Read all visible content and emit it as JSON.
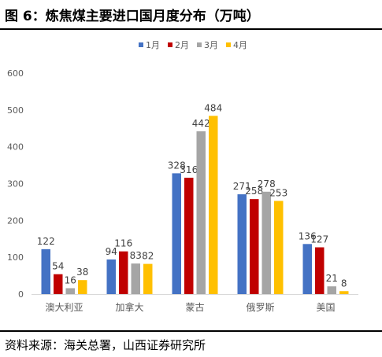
{
  "figure": {
    "title": "图 6：炼焦煤主要进口国月度分布（万吨）",
    "source": "资料来源：海关总署，山西证券研究所"
  },
  "chart_data": {
    "type": "bar",
    "categories": [
      "澳大利亚",
      "加拿大",
      "蒙古",
      "俄罗斯",
      "美国"
    ],
    "series": [
      {
        "name": "1月",
        "color": "#4472C4",
        "values": [
          122,
          94,
          328,
          271,
          136
        ]
      },
      {
        "name": "2月",
        "color": "#C00000",
        "values": [
          54,
          116,
          316,
          258,
          127
        ]
      },
      {
        "name": "3月",
        "color": "#A5A5A5",
        "values": [
          16,
          83,
          442,
          278,
          21
        ]
      },
      {
        "name": "4月",
        "color": "#FFC000",
        "values": [
          38,
          82,
          484,
          253,
          8
        ]
      }
    ],
    "ylim": [
      0,
      600
    ],
    "yticks": [
      0,
      100,
      200,
      300,
      400,
      500,
      600
    ],
    "grid": false,
    "legend": "top-center"
  }
}
